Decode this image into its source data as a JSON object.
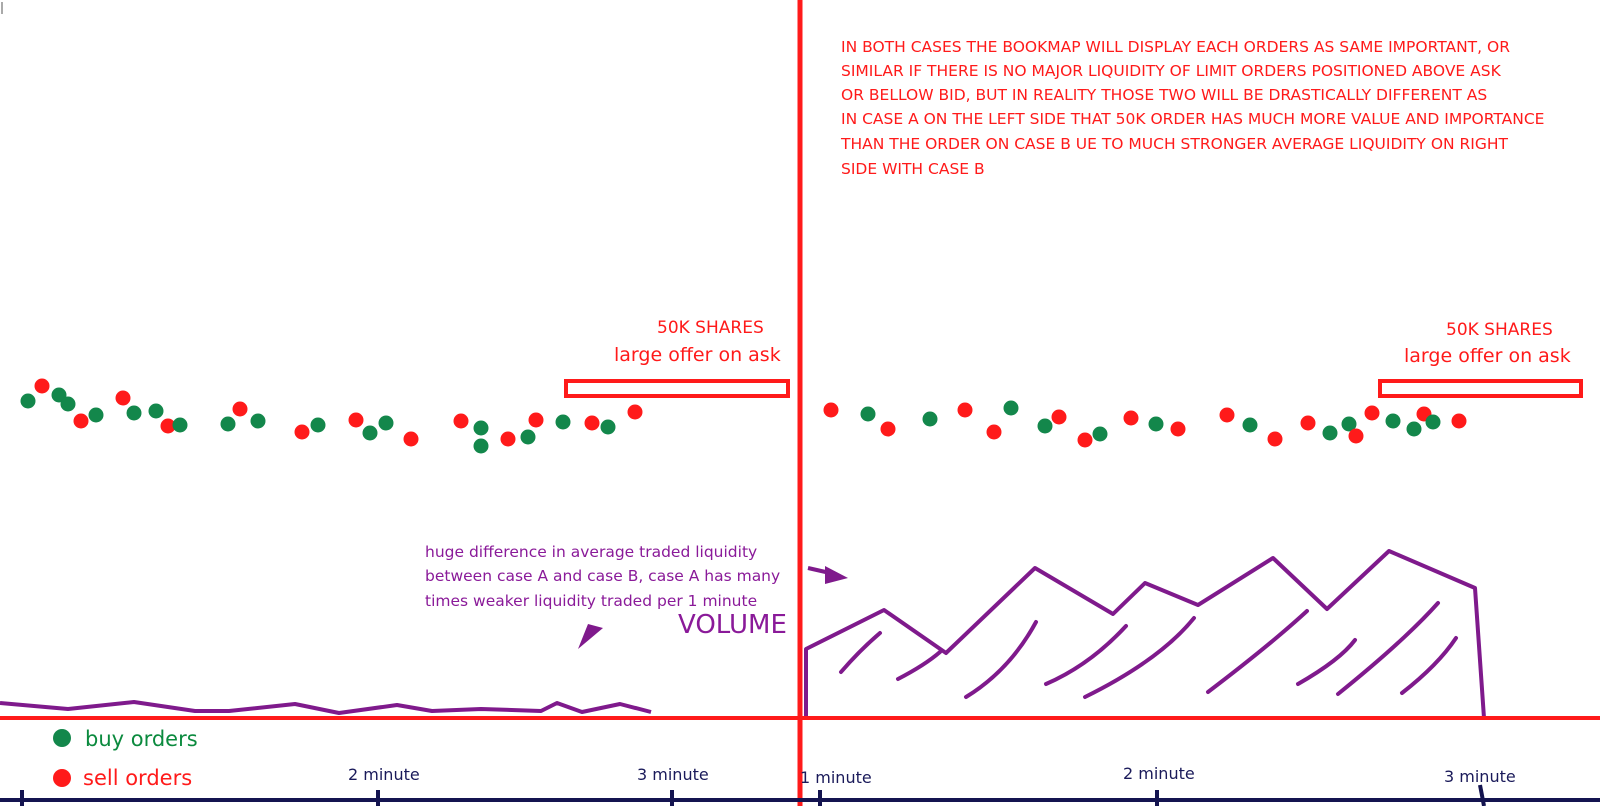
{
  "colors": {
    "red": "#ff1a1a",
    "green": "#13874b",
    "purple": "#7f1a8c",
    "navy": "#141450"
  },
  "annotation": {
    "lines": [
      "IN BOTH CASES THE BOOKMAP WILL DISPLAY EACH ORDERS AS SAME IMPORTANT, OR",
      "SIMILAR IF THERE IS NO MAJOR LIQUIDITY OF LIMIT ORDERS POSITIONED ABOVE ASK",
      "OR BELLOW BID, BUT IN REALITY THOSE TWO WILL BE DRASTICALLY DIFFERENT AS",
      "IN CASE A ON THE LEFT SIDE THAT 50K ORDER HAS MUCH MORE VALUE AND IMPORTANCE",
      "THAN THE ORDER ON CASE B UE TO MUCH STRONGER AVERAGE LIQUIDITY ON RIGHT",
      "SIDE WITH CASE B"
    ]
  },
  "case_a": {
    "shares_label": "50K SHARES",
    "offer_label": "large offer on ask"
  },
  "case_b": {
    "shares_label": "50K SHARES",
    "offer_label": "large offer on ask"
  },
  "liquidity_note": {
    "lines": [
      "huge difference in average traded liquidity",
      "between case A and case B, case A has many",
      "times weaker liquidity traded per 1 minute"
    ]
  },
  "volume_label": "VOLUME",
  "legend": {
    "buy": "buy orders",
    "sell": "sell orders"
  },
  "time_axis": {
    "left_2": "2 minute",
    "left_3": "3 minute",
    "right_1": "1 minute",
    "right_2": "2 minute",
    "right_3": "3 minute"
  }
}
